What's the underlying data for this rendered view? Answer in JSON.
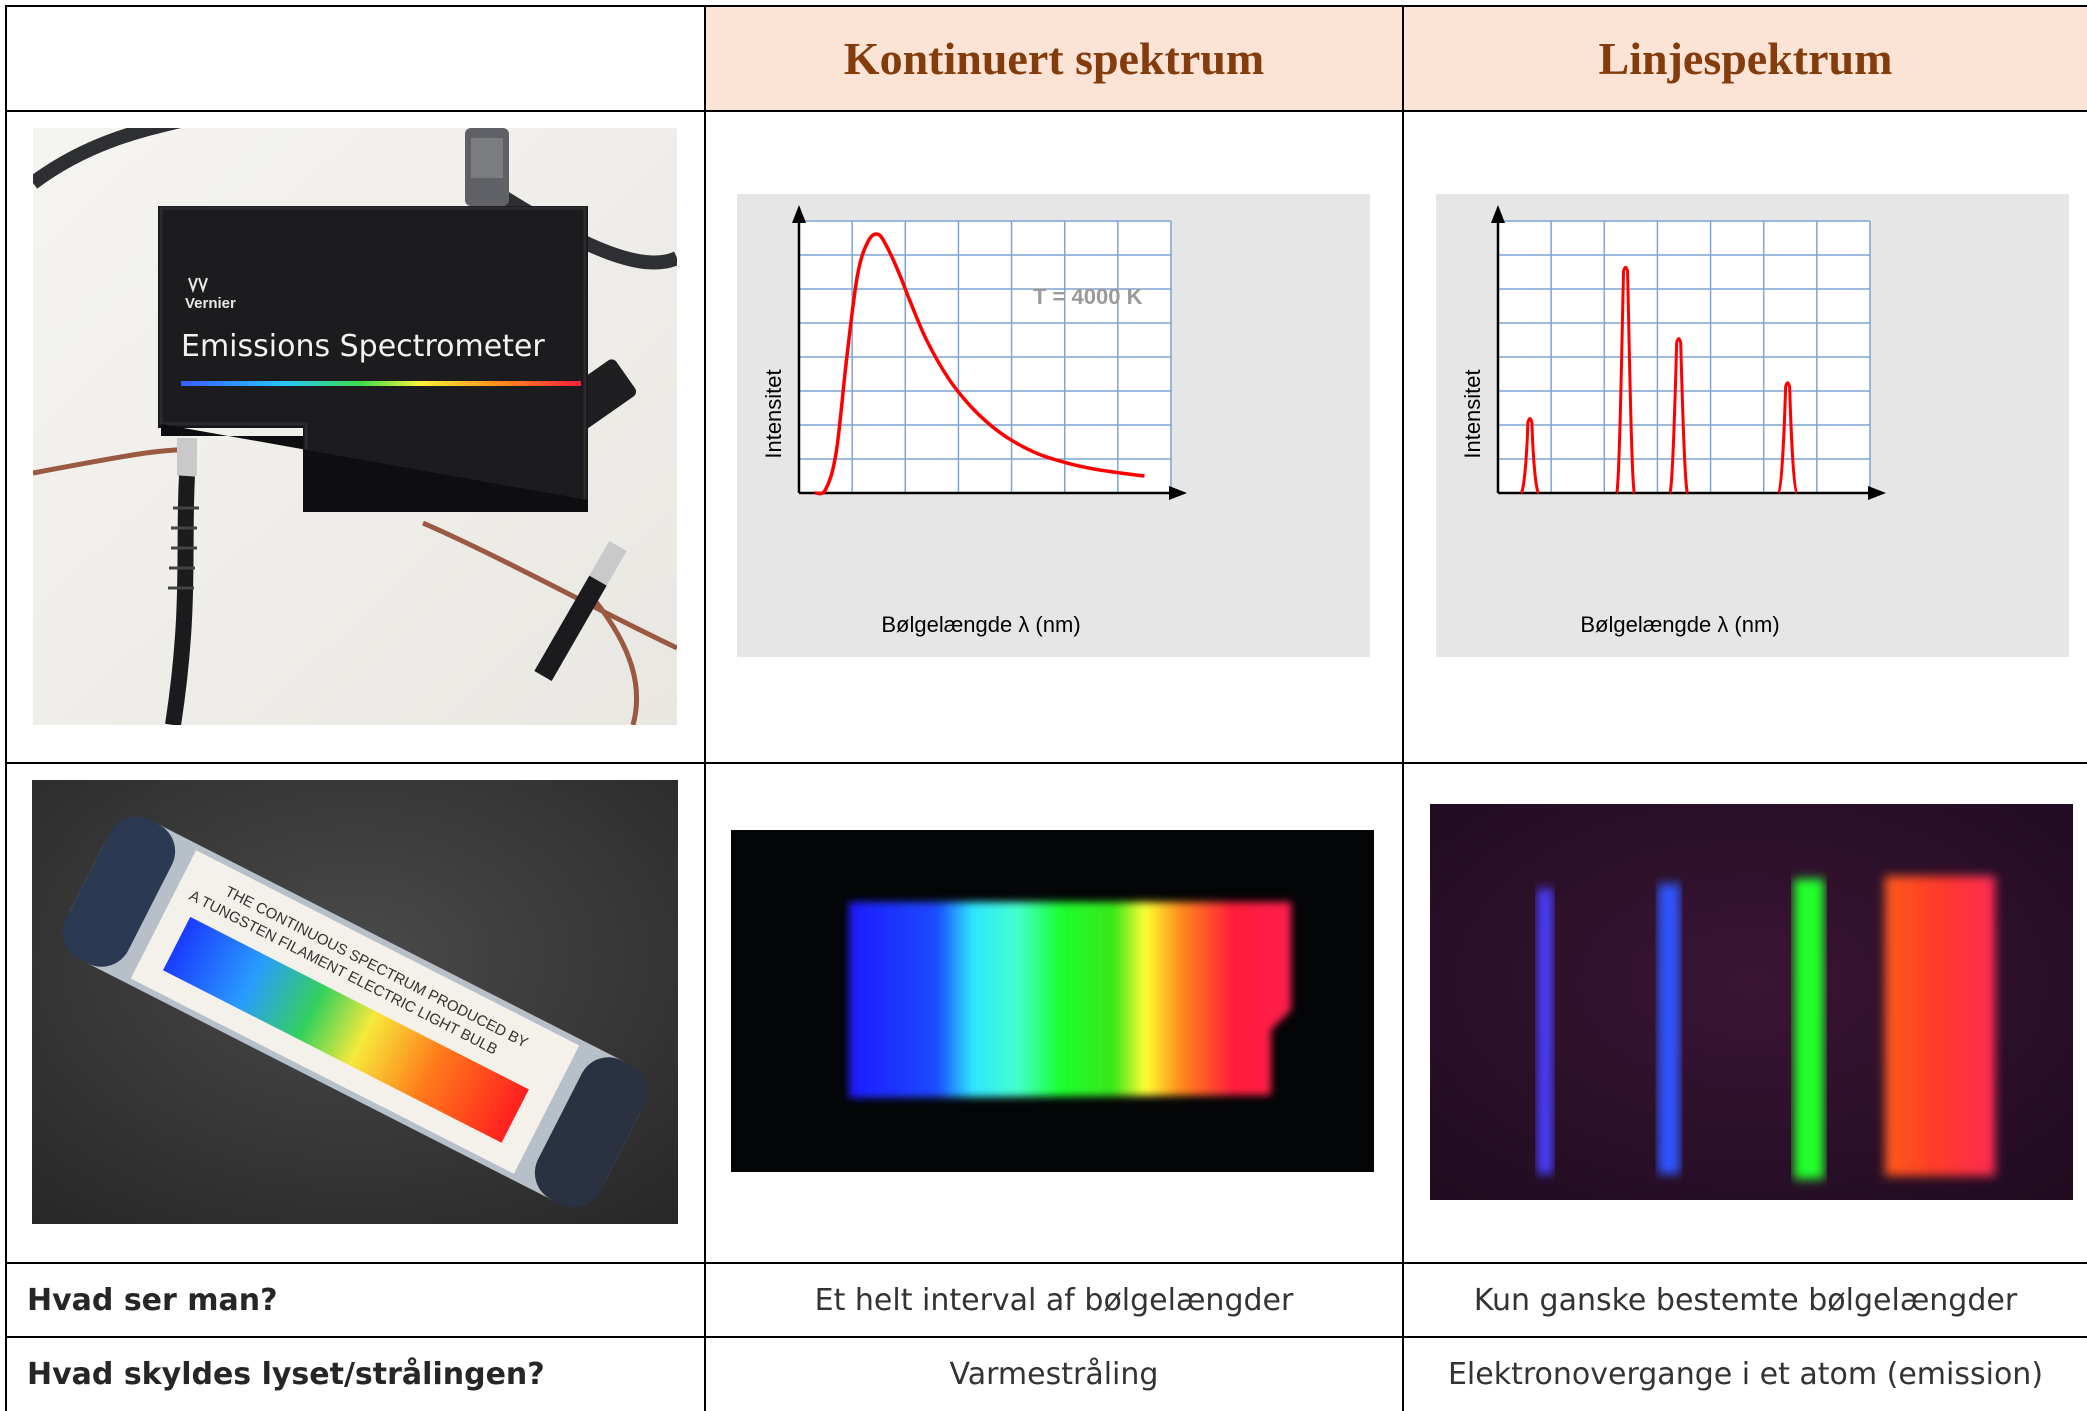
{
  "headers": {
    "empty": "",
    "continuous": "Kontinuert spektrum",
    "line": "Linjespektrum"
  },
  "rows": [
    {
      "label": "Hvad ser man?",
      "continuous": "Et helt interval af bølgelængder",
      "line": "Kun ganske bestemte bølgelængder"
    },
    {
      "label": "Hvad skyldes lyset/strålingen?",
      "continuous": "Varmestråling",
      "line": "Elektronovergange i et atom (emission)"
    }
  ],
  "photos": {
    "spectrometer": {
      "brand": "Vernier",
      "product": "Emissions Spectrometer"
    },
    "tube": {
      "label_line1": "THE CONTINUOUS SPECTRUM PRODUCED BY",
      "label_line2": "A TUNGSTEN FILAMENT ELECTRIC LIGHT BULB"
    }
  },
  "chart_data": [
    {
      "type": "line",
      "title": "",
      "annotation": "T = 4000 K",
      "xlabel": "Bølgelængde  λ (nm)",
      "ylabel": "Intensitet",
      "xlim": [
        0,
        7
      ],
      "ylim": [
        0,
        8
      ],
      "grid": true,
      "series": [
        {
          "color": "#ff0000",
          "x": [
            0.3,
            0.5,
            0.7,
            0.9,
            1.1,
            1.3,
            1.5,
            1.7,
            1.9,
            2.1,
            2.4,
            2.8,
            3.2,
            3.6,
            4.0,
            4.5,
            5.0,
            5.5,
            6.0,
            6.5
          ],
          "y": [
            0.0,
            0.1,
            1.2,
            4.0,
            6.4,
            7.4,
            7.6,
            7.1,
            6.4,
            5.6,
            4.5,
            3.4,
            2.6,
            2.0,
            1.55,
            1.15,
            0.9,
            0.72,
            0.6,
            0.5
          ]
        }
      ]
    },
    {
      "type": "line",
      "title": "",
      "xlabel": "Bølgelængde  λ (nm)",
      "ylabel": "Intensitet",
      "xlim": [
        0,
        7
      ],
      "ylim": [
        0,
        8
      ],
      "grid": true,
      "peaks": [
        {
          "x": 0.6,
          "y": 2.25
        },
        {
          "x": 2.4,
          "y": 6.7
        },
        {
          "x": 3.4,
          "y": 4.6
        },
        {
          "x": 5.45,
          "y": 3.3
        }
      ],
      "color": "#ff0000"
    }
  ]
}
